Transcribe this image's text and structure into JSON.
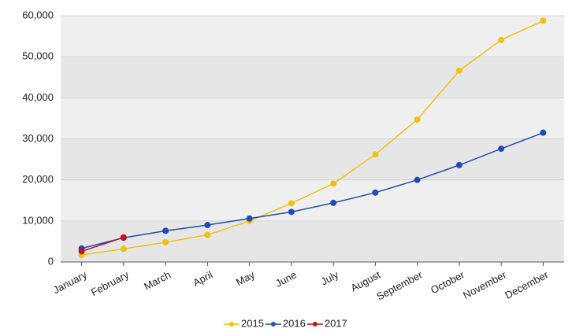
{
  "chart_data": {
    "type": "line",
    "categories": [
      "January",
      "February",
      "March",
      "April",
      "May",
      "June",
      "July",
      "August",
      "September",
      "October",
      "November",
      "December"
    ],
    "series": [
      {
        "name": "2015",
        "color": "#f0c20f",
        "values": [
          1700,
          3200,
          4800,
          6600,
          10000,
          14300,
          19100,
          26200,
          34700,
          46600,
          54100,
          58800
        ]
      },
      {
        "name": "2016",
        "color": "#1f4db5",
        "values": [
          3300,
          5900,
          7600,
          9000,
          10600,
          12200,
          14400,
          16900,
          20000,
          23600,
          27600,
          31500
        ]
      },
      {
        "name": "2017",
        "color": "#c0141e",
        "values": [
          2600,
          6000,
          null,
          null,
          null,
          null,
          null,
          null,
          null,
          null,
          null,
          null
        ]
      }
    ],
    "ylim": [
      0,
      60000
    ],
    "yticks": [
      0,
      {
        "value": 10000,
        "label": "10,000"
      },
      {
        "value": 20000,
        "label": "20,000"
      },
      {
        "value": 30000,
        "label": "30,000"
      },
      {
        "value": 40000,
        "label": "40,000"
      },
      {
        "value": 50000,
        "label": "50,000"
      },
      {
        "value": 60000,
        "label": "60,000"
      }
    ],
    "grid": true,
    "legend": "bottom"
  }
}
